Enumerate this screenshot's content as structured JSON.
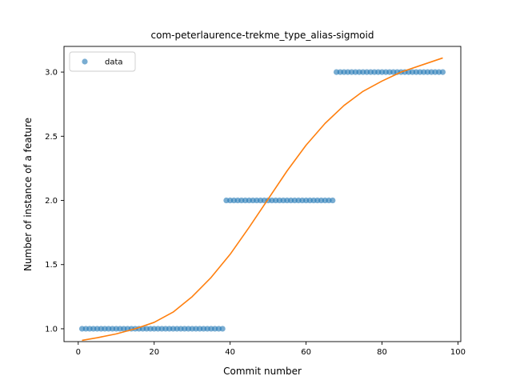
{
  "chart_data": {
    "type": "scatter",
    "title": "com-peterlaurence-trekme_type_alias-sigmoid",
    "xlabel": "Commit number",
    "ylabel": "Number of instance of a feature",
    "xlim": [
      -3.75,
      100.75
    ],
    "ylim": [
      0.9,
      3.2
    ],
    "xticks": [
      0,
      20,
      40,
      60,
      80,
      100
    ],
    "yticks": [
      1.0,
      1.5,
      2.0,
      2.5,
      3.0
    ],
    "xtick_labels": [
      "0",
      "20",
      "40",
      "60",
      "80",
      "100"
    ],
    "ytick_labels": [
      "1.0",
      "1.5",
      "2.0",
      "2.5",
      "3.0"
    ],
    "legend": {
      "placement": "top-left",
      "entries": [
        "data"
      ]
    },
    "colors": {
      "data": "#1f77b4",
      "fit": "#ff7f0e"
    },
    "series": [
      {
        "name": "data",
        "kind": "scatter",
        "segments": [
          {
            "x_start": 1,
            "x_end": 38,
            "y": 1
          },
          {
            "x_start": 39,
            "x_end": 67,
            "y": 2
          },
          {
            "x_start": 68,
            "x_end": 96,
            "y": 3
          }
        ]
      },
      {
        "kind": "line",
        "x": [
          1,
          5,
          10,
          15,
          20,
          25,
          30,
          35,
          40,
          45,
          50,
          55,
          60,
          65,
          70,
          75,
          80,
          85,
          90,
          96
        ],
        "y": [
          0.91,
          0.93,
          0.96,
          1.0,
          1.05,
          1.13,
          1.25,
          1.4,
          1.58,
          1.79,
          2.01,
          2.23,
          2.43,
          2.6,
          2.74,
          2.85,
          2.93,
          3.0,
          3.05,
          3.11
        ]
      }
    ]
  }
}
